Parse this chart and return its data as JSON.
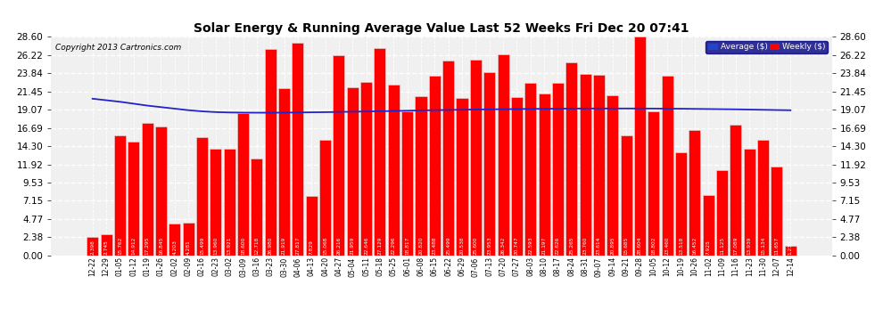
{
  "title": "Solar Energy & Running Average Value Last 52 Weeks Fri Dec 20 07:41",
  "copyright": "Copyright 2013 Cartronics.com",
  "legend_avg": "Average ($)",
  "legend_weekly": "Weekly ($)",
  "bar_color": "#ff0000",
  "bar_edge_color": "#dddddd",
  "avg_line_color": "#2222cc",
  "background_color": "#ffffff",
  "plot_bg_color": "#f0f0f0",
  "grid_color": "#ffffff",
  "ylim": [
    0.0,
    28.6
  ],
  "yticks": [
    0.0,
    2.38,
    4.77,
    7.15,
    9.53,
    11.92,
    14.3,
    16.69,
    19.07,
    21.45,
    23.84,
    26.22,
    28.6
  ],
  "categories": [
    "12-22",
    "12-29",
    "01-05",
    "01-12",
    "01-19",
    "01-26",
    "02-02",
    "02-09",
    "02-16",
    "02-23",
    "03-02",
    "03-09",
    "03-16",
    "03-23",
    "03-30",
    "04-06",
    "04-13",
    "04-20",
    "04-27",
    "05-04",
    "05-11",
    "05-18",
    "05-25",
    "06-01",
    "06-08",
    "06-15",
    "06-22",
    "06-29",
    "07-06",
    "07-13",
    "07-20",
    "07-27",
    "08-03",
    "08-10",
    "08-17",
    "08-24",
    "08-31",
    "09-07",
    "09-14",
    "09-21",
    "09-28",
    "10-05",
    "10-12",
    "10-19",
    "10-26",
    "11-02",
    "11-09",
    "11-16",
    "11-23",
    "11-30",
    "12-07",
    "12-14"
  ],
  "weekly_values": [
    2.398,
    2.745,
    15.762,
    14.912,
    17.295,
    16.845,
    4.203,
    4.281,
    15.499,
    13.96,
    13.921,
    18.6,
    12.718,
    26.98,
    21.919,
    27.817,
    7.829,
    15.068,
    26.216,
    21.959,
    22.646,
    27.129,
    22.296,
    18.817,
    20.82,
    23.488,
    25.499,
    20.538,
    25.6,
    23.953,
    26.342,
    20.747,
    22.593,
    21.197,
    22.626,
    25.265,
    23.76,
    23.614,
    20.895,
    15.685,
    28.604,
    18.802,
    23.46,
    13.518,
    16.452,
    7.925,
    11.125,
    17.089,
    13.939,
    15.134,
    11.657,
    1.236
  ],
  "avg_values": [
    20.5,
    20.3,
    20.1,
    19.85,
    19.6,
    19.4,
    19.2,
    19.0,
    18.85,
    18.75,
    18.7,
    18.68,
    18.67,
    18.67,
    18.68,
    18.7,
    18.72,
    18.74,
    18.77,
    18.8,
    18.83,
    18.86,
    18.9,
    18.93,
    18.97,
    19.0,
    19.03,
    19.06,
    19.09,
    19.11,
    19.13,
    19.15,
    19.17,
    19.18,
    19.2,
    19.21,
    19.22,
    19.22,
    19.22,
    19.22,
    19.22,
    19.21,
    19.2,
    19.19,
    19.17,
    19.15,
    19.13,
    19.11,
    19.08,
    19.05,
    19.02,
    18.99
  ]
}
